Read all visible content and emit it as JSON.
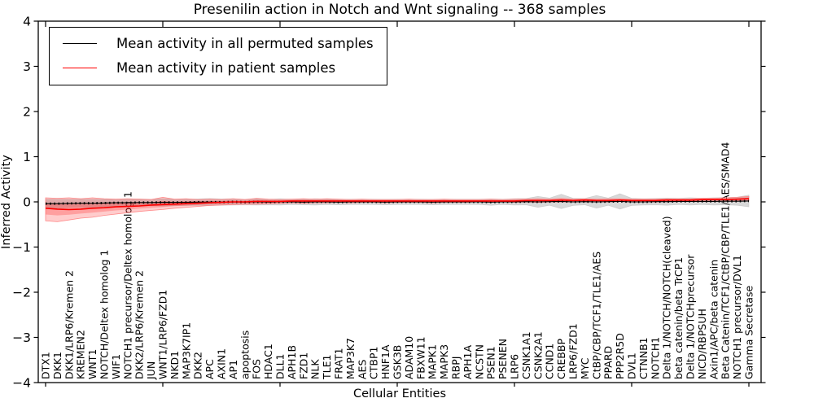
{
  "chart_data": {
    "type": "line",
    "title": "Presenilin action in Notch and Wnt signaling -- 368 samples",
    "xlabel": "Cellular Entities",
    "ylabel": "Inferred Activity",
    "ylim": [
      -4,
      4
    ],
    "grid": false,
    "legend_position": "upper left",
    "yticks": [
      {
        "value": -4,
        "label": "−4"
      },
      {
        "value": -3,
        "label": "−3"
      },
      {
        "value": -2,
        "label": "−2"
      },
      {
        "value": -1,
        "label": "−1"
      },
      {
        "value": 0,
        "label": "0"
      },
      {
        "value": 1,
        "label": "1"
      },
      {
        "value": 2,
        "label": "2"
      },
      {
        "value": 3,
        "label": "3"
      },
      {
        "value": 4,
        "label": "4"
      }
    ],
    "x_major_tick_indices": [
      0,
      10,
      20,
      30,
      40,
      50,
      60
    ],
    "categories": [
      "DTX1",
      "DKK1",
      "DKK1/LRP6/Kremen 2",
      "KREMEN2",
      "WNT1",
      "NOTCH/Deltex homolog 1",
      "WIF1",
      "NOTCH1 precursor/Deltex homolog 1",
      "DKK2/LRP6/Kremen 2",
      "JUN",
      "WNT1/LRP6/FZD1",
      "NKD1",
      "MAP3K7IP1",
      "DKK2",
      "APC",
      "AXIN1",
      "AP1",
      "apoptosis",
      "FOS",
      "HDAC1",
      "DLL1",
      "APH1B",
      "FZD1",
      "NLK",
      "TLE1",
      "FRAT1",
      "MAP3K7",
      "AES",
      "CTBP1",
      "HNF1A",
      "GSK3B",
      "ADAM10",
      "FBXW11",
      "MAPK1",
      "MAPK3",
      "RBPJ",
      "APH1A",
      "NCSTN",
      "PSEN1",
      "PSENEN",
      "LRP6",
      "CSNK1A1",
      "CSNK2A1",
      "CCND1",
      "CREBBP",
      "LRP6/FZD1",
      "MYC",
      "CtBP/CBP/TCF1/TLE1/AES",
      "PPARD",
      "PPP2R5D",
      "DVL1",
      "CTNNB1",
      "NOTCH1",
      "Delta 1/NOTCH/NOTCH(cleaved)",
      "beta catenin/beta TrCP1",
      "Delta 1/NOTCHprecursor",
      "NICD/RBPSUH",
      "Axin1/APC/beta catenin",
      "Beta Catenin/TCF1/CtBP/CBP/TLE1/AES/SMAD4",
      "NOTCH1 precursor/DVL1",
      "Gamma Secretase"
    ],
    "series": [
      {
        "name": "Mean activity in all permuted samples",
        "color": "#000000",
        "style": "solid-with-dot-markers",
        "values": [
          -0.04,
          -0.04,
          -0.035,
          -0.03,
          -0.03,
          -0.025,
          -0.02,
          -0.02,
          -0.015,
          -0.015,
          -0.01,
          -0.01,
          -0.01,
          -0.005,
          -0.005,
          -0.005,
          0,
          -0.005,
          0,
          -0.005,
          0,
          0,
          -0.005,
          0,
          0,
          -0.005,
          0,
          0,
          0,
          -0.005,
          0,
          0,
          0,
          -0.005,
          0,
          0,
          0,
          0,
          -0.005,
          0,
          0,
          0.005,
          0,
          0.005,
          0.01,
          0,
          0.005,
          0,
          0.005,
          0.01,
          0,
          0,
          0.005,
          0.005,
          0.01,
          0.01,
          0.01,
          0.01,
          0.015,
          0.015,
          0.02
        ]
      },
      {
        "name": "Mean activity in patient samples",
        "color": "#ff0000",
        "style": "solid",
        "values": [
          -0.14,
          -0.16,
          -0.17,
          -0.16,
          -0.14,
          -0.13,
          -0.11,
          -0.1,
          -0.09,
          -0.07,
          -0.06,
          -0.05,
          -0.04,
          -0.03,
          -0.02,
          -0.01,
          0,
          0,
          0.01,
          0.01,
          0.01,
          0.02,
          0.02,
          0.02,
          0.02,
          0.02,
          0.02,
          0.02,
          0.02,
          0.02,
          0.02,
          0.02,
          0.02,
          0.02,
          0.02,
          0.02,
          0.02,
          0.02,
          0.02,
          0.02,
          0.02,
          0.03,
          0.03,
          0.03,
          0.04,
          0.03,
          0.04,
          0.03,
          0.03,
          0.04,
          0.03,
          0.03,
          0.03,
          0.04,
          0.04,
          0.04,
          0.05,
          0.05,
          0.05,
          0.06,
          0.07
        ]
      }
    ],
    "bands": [
      {
        "name": "permuted samples range",
        "color": "#999999",
        "upper": [
          0.06,
          0.06,
          0.055,
          0.06,
          0.06,
          0.055,
          0.06,
          0.06,
          0.065,
          0.055,
          0.07,
          0.06,
          0.06,
          0.065,
          0.075,
          0.065,
          0.07,
          0.055,
          0.07,
          0.055,
          0.07,
          0.06,
          0.055,
          0.07,
          0.06,
          0.055,
          0.06,
          0.06,
          0.06,
          0.055,
          0.06,
          0.06,
          0.06,
          0.055,
          0.06,
          0.06,
          0.06,
          0.06,
          0.065,
          0.06,
          0.07,
          0.075,
          0.12,
          0.085,
          0.17,
          0.08,
          0.075,
          0.14,
          0.085,
          0.18,
          0.08,
          0.07,
          0.075,
          0.085,
          0.08,
          0.09,
          0.08,
          0.09,
          0.095,
          0.105,
          0.15
        ],
        "lower": [
          -0.14,
          -0.14,
          -0.125,
          -0.12,
          -0.12,
          -0.105,
          -0.1,
          -0.1,
          -0.095,
          -0.085,
          -0.09,
          -0.08,
          -0.08,
          -0.075,
          -0.085,
          -0.075,
          -0.07,
          -0.065,
          -0.07,
          -0.065,
          -0.07,
          -0.06,
          -0.065,
          -0.07,
          -0.06,
          -0.065,
          -0.06,
          -0.06,
          -0.06,
          -0.065,
          -0.06,
          -0.06,
          -0.06,
          -0.065,
          -0.06,
          -0.06,
          -0.06,
          -0.06,
          -0.075,
          -0.06,
          -0.07,
          -0.065,
          -0.12,
          -0.075,
          -0.15,
          -0.08,
          -0.065,
          -0.14,
          -0.075,
          -0.16,
          -0.08,
          -0.07,
          -0.065,
          -0.075,
          -0.06,
          -0.07,
          -0.06,
          -0.07,
          -0.065,
          -0.075,
          -0.11
        ]
      },
      {
        "name": "patient samples range",
        "color": "#ff0000",
        "upper": [
          0.09,
          0.08,
          0.09,
          0.07,
          0.09,
          0.07,
          0.06,
          0.07,
          0.06,
          0.05,
          0.1,
          0.06,
          0.07,
          0.05,
          0.06,
          0.05,
          0.07,
          0.05,
          0.08,
          0.06,
          0.05,
          0.06,
          0.07,
          0.06,
          0.07,
          0.06,
          0.05,
          0.06,
          0.05,
          0.05,
          0.05,
          0.06,
          0.05,
          0.05,
          0.06,
          0.05,
          0.05,
          0.05,
          0.06,
          0.05,
          0.06,
          0.06,
          0.07,
          0.06,
          0.08,
          0.06,
          0.07,
          0.06,
          0.07,
          0.07,
          0.06,
          0.06,
          0.06,
          0.07,
          0.07,
          0.07,
          0.08,
          0.08,
          0.09,
          0.1,
          0.12
        ],
        "lower": [
          -0.42,
          -0.44,
          -0.4,
          -0.36,
          -0.34,
          -0.3,
          -0.27,
          -0.24,
          -0.21,
          -0.19,
          -0.17,
          -0.14,
          -0.12,
          -0.1,
          -0.08,
          -0.07,
          -0.06,
          -0.05,
          -0.05,
          -0.04,
          -0.03,
          -0.02,
          -0.03,
          -0.02,
          -0.02,
          -0.01,
          -0.02,
          -0.01,
          -0.01,
          -0.02,
          -0.01,
          -0.01,
          -0.01,
          -0.02,
          -0.01,
          -0.01,
          -0.01,
          0,
          -0.01,
          0,
          -0.01,
          0,
          -0.01,
          0,
          0,
          0,
          0.01,
          0,
          0,
          0.01,
          0,
          0.01,
          0,
          0.01,
          0.01,
          0.02,
          0.02,
          0.02,
          0.02,
          0.03,
          0.02
        ]
      }
    ]
  },
  "colors": {
    "background": "#ffffff",
    "axes": "#000000",
    "permuted_line": "#000000",
    "patient_line": "#ff0000",
    "gray_band": "#999999",
    "red_band": "#ff0000"
  }
}
